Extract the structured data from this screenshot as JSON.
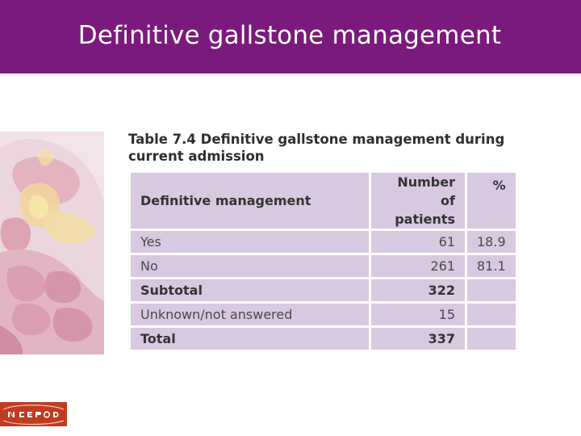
{
  "slide": {
    "title": "Definitive gallstone management"
  },
  "table": {
    "caption_line1": "Table 7.4 Definitive gallstone management during",
    "caption_line2": "current admission",
    "headers": {
      "col1": "Definitive management",
      "col2_line1": "Number of",
      "col2_line2": "patients",
      "col3": "%"
    },
    "rows": [
      {
        "label": "Yes",
        "count": "61",
        "pct": "18.9"
      },
      {
        "label": "No",
        "count": "261",
        "pct": "81.1"
      },
      {
        "label": "Subtotal",
        "count": "322",
        "pct": ""
      },
      {
        "label": "Unknown/not answered",
        "count": "15",
        "pct": ""
      },
      {
        "label": "Total",
        "count": "337",
        "pct": ""
      }
    ]
  },
  "logo": {
    "text": "NCEPOD"
  },
  "colors": {
    "header_bg": "#7b1a7d",
    "table_cell_bg": "#d8c8e0",
    "logo_bg": "#c03b1f"
  }
}
